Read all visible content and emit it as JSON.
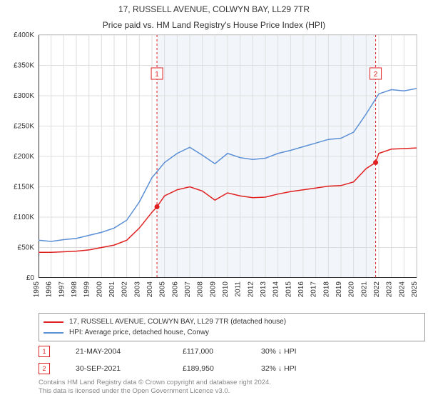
{
  "title": {
    "line1": "17, RUSSELL AVENUE, COLWYN BAY, LL29 7TR",
    "line2": "Price paid vs. HM Land Registry's House Price Index (HPI)",
    "fontsize": 12,
    "color": "#333333"
  },
  "chart": {
    "type": "line",
    "background_color": "#ffffff",
    "grid_color": "#dddddd",
    "highlight_band_color": "#f2f6fb",
    "axis_color": "#333333",
    "xlim": [
      1995,
      2025
    ],
    "ylim": [
      0,
      400000
    ],
    "xticks": [
      1995,
      1996,
      1997,
      1998,
      1999,
      2000,
      2001,
      2002,
      2003,
      2004,
      2005,
      2006,
      2007,
      2008,
      2009,
      2010,
      2011,
      2012,
      2013,
      2014,
      2015,
      2016,
      2017,
      2018,
      2019,
      2020,
      2021,
      2022,
      2023,
      2024,
      2025
    ],
    "ytick_step": 50000,
    "ytick_labels": [
      "£0",
      "£50K",
      "£100K",
      "£150K",
      "£200K",
      "£250K",
      "£300K",
      "£350K",
      "£400K"
    ],
    "tick_fontsize": 10,
    "band_start": 2004.4,
    "band_end": 2021.75,
    "marker_line_color": "#e02020",
    "marker_line_dash": "3,3",
    "series": [
      {
        "id": "property",
        "label": "17, RUSSELL AVENUE, COLWYN BAY, LL29 7TR (detached house)",
        "color": "#e02020",
        "line_width": 1.5,
        "data": [
          [
            1995,
            42000
          ],
          [
            1996,
            42000
          ],
          [
            1997,
            43000
          ],
          [
            1998,
            44000
          ],
          [
            1999,
            46000
          ],
          [
            2000,
            50000
          ],
          [
            2001,
            54000
          ],
          [
            2002,
            62000
          ],
          [
            2003,
            82000
          ],
          [
            2004,
            108000
          ],
          [
            2004.4,
            117000
          ],
          [
            2005,
            135000
          ],
          [
            2006,
            145000
          ],
          [
            2007,
            150000
          ],
          [
            2008,
            143000
          ],
          [
            2009,
            128000
          ],
          [
            2010,
            140000
          ],
          [
            2011,
            135000
          ],
          [
            2012,
            132000
          ],
          [
            2013,
            133000
          ],
          [
            2014,
            138000
          ],
          [
            2015,
            142000
          ],
          [
            2016,
            145000
          ],
          [
            2017,
            148000
          ],
          [
            2018,
            151000
          ],
          [
            2019,
            152000
          ],
          [
            2020,
            158000
          ],
          [
            2021,
            180000
          ],
          [
            2021.75,
            189950
          ],
          [
            2022,
            205000
          ],
          [
            2023,
            212000
          ],
          [
            2024,
            213000
          ],
          [
            2025,
            214000
          ]
        ]
      },
      {
        "id": "hpi",
        "label": "HPI: Average price, detached house, Conwy",
        "color": "#5b8fd6",
        "line_width": 1.5,
        "data": [
          [
            1995,
            62000
          ],
          [
            1996,
            60000
          ],
          [
            1997,
            63000
          ],
          [
            1998,
            65000
          ],
          [
            1999,
            70000
          ],
          [
            2000,
            75000
          ],
          [
            2001,
            82000
          ],
          [
            2002,
            95000
          ],
          [
            2003,
            125000
          ],
          [
            2004,
            165000
          ],
          [
            2005,
            190000
          ],
          [
            2006,
            205000
          ],
          [
            2007,
            215000
          ],
          [
            2008,
            202000
          ],
          [
            2009,
            188000
          ],
          [
            2010,
            205000
          ],
          [
            2011,
            198000
          ],
          [
            2012,
            195000
          ],
          [
            2013,
            197000
          ],
          [
            2014,
            205000
          ],
          [
            2015,
            210000
          ],
          [
            2016,
            216000
          ],
          [
            2017,
            222000
          ],
          [
            2018,
            228000
          ],
          [
            2019,
            230000
          ],
          [
            2020,
            240000
          ],
          [
            2021,
            270000
          ],
          [
            2022,
            303000
          ],
          [
            2023,
            310000
          ],
          [
            2024,
            308000
          ],
          [
            2025,
            312000
          ]
        ]
      }
    ],
    "markers": [
      {
        "num": "1",
        "x": 2004.4,
        "y": 117000
      },
      {
        "num": "2",
        "x": 2021.75,
        "y": 189950
      }
    ]
  },
  "legend": {
    "border_color": "#999999",
    "fontsize": 10
  },
  "marker_table": {
    "rows": [
      {
        "num": "1",
        "date": "21-MAY-2004",
        "price": "£117,000",
        "delta": "30% ↓ HPI"
      },
      {
        "num": "2",
        "date": "30-SEP-2021",
        "price": "£189,950",
        "delta": "32% ↓ HPI"
      }
    ],
    "badge_border": "#e02020",
    "badge_text_color": "#e02020",
    "fontsize": 10.5
  },
  "footer": {
    "line1": "Contains HM Land Registry data © Crown copyright and database right 2024.",
    "line2": "This data is licensed under the Open Government Licence v3.0.",
    "color": "#888888",
    "fontsize": 9.5
  }
}
